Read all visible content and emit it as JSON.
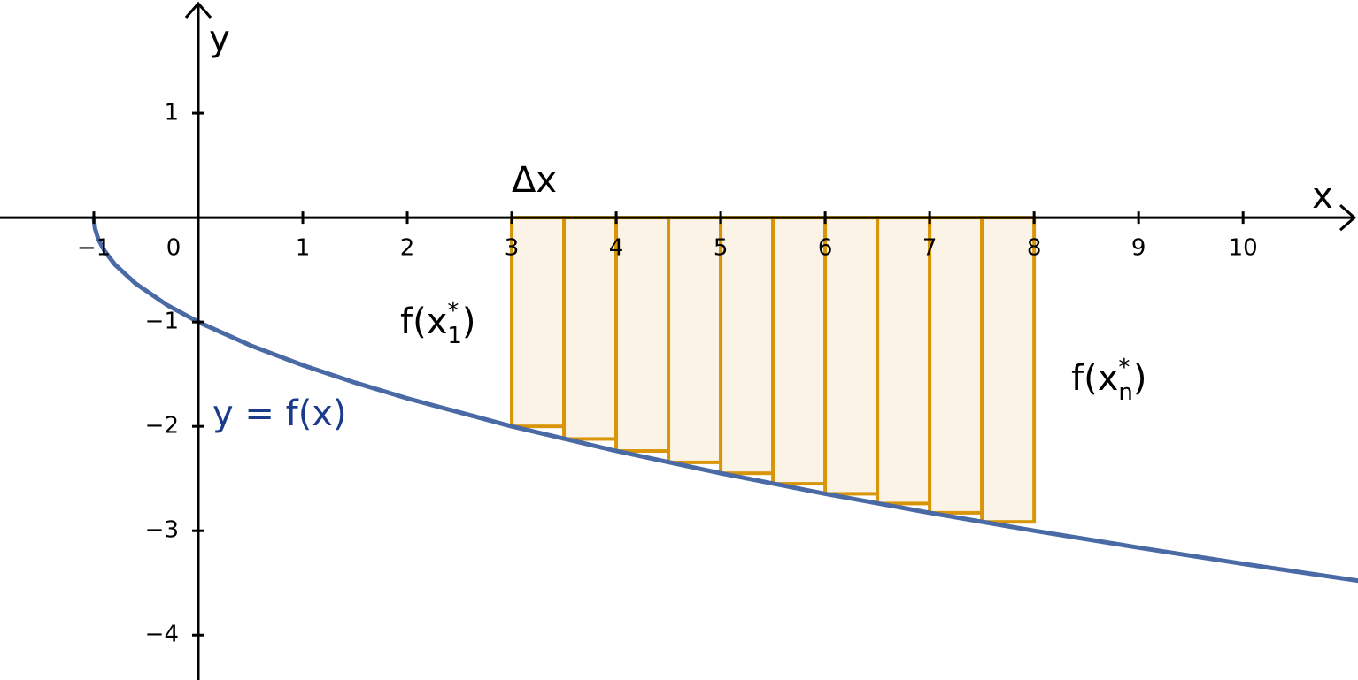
{
  "chart_data": {
    "type": "line",
    "xlabel": "x",
    "ylabel": "y",
    "xlim": [
      -1.898,
      11.1
    ],
    "ylim": [
      -4.43,
      2.085
    ],
    "xticks": [
      {
        "value": -1,
        "label": "−1"
      },
      0,
      1,
      2,
      3,
      4,
      5,
      6,
      7,
      8,
      9,
      10
    ],
    "yticks": [
      {
        "value": -4,
        "label": "−4"
      },
      {
        "value": -3,
        "label": "−3"
      },
      {
        "value": -2,
        "label": "−2"
      },
      {
        "value": -1,
        "label": "−1"
      },
      1
    ],
    "series": [
      {
        "name": "y = f(x)",
        "color": "#4a6aa5",
        "x": [
          -1,
          -0.99,
          -0.96,
          -0.9,
          -0.8,
          -0.6,
          -0.3,
          0,
          0.5,
          1,
          1.5,
          2,
          3,
          4,
          5,
          6,
          7,
          8,
          9,
          10,
          11.1
        ],
        "values": [
          0,
          -0.1,
          -0.2,
          -0.316,
          -0.447,
          -0.632,
          -0.837,
          -1,
          -1.225,
          -1.414,
          -1.581,
          -1.732,
          -2,
          -2.236,
          -2.449,
          -2.646,
          -2.828,
          -3,
          -3.162,
          -3.317,
          -3.479
        ]
      }
    ],
    "rectangles": {
      "edges": [
        3,
        3.5,
        4,
        4.5,
        5,
        5.5,
        6,
        6.5,
        7,
        7.5,
        8
      ],
      "values": [
        -2,
        -2.121,
        -2.236,
        -2.345,
        -2.449,
        -2.55,
        -2.646,
        -2.739,
        -2.828,
        -2.915
      ],
      "color": "#d9950a",
      "fill": "#fbf3e6"
    },
    "annotations": [
      {
        "text": "Δx"
      },
      {
        "text": "f(x",
        "sup": "*",
        "sub": "1",
        "end": ")"
      },
      {
        "text": "f(x",
        "sup": "*",
        "sub": "n",
        "end": ")"
      }
    ],
    "curve_label_color": "#1a3a8a"
  }
}
